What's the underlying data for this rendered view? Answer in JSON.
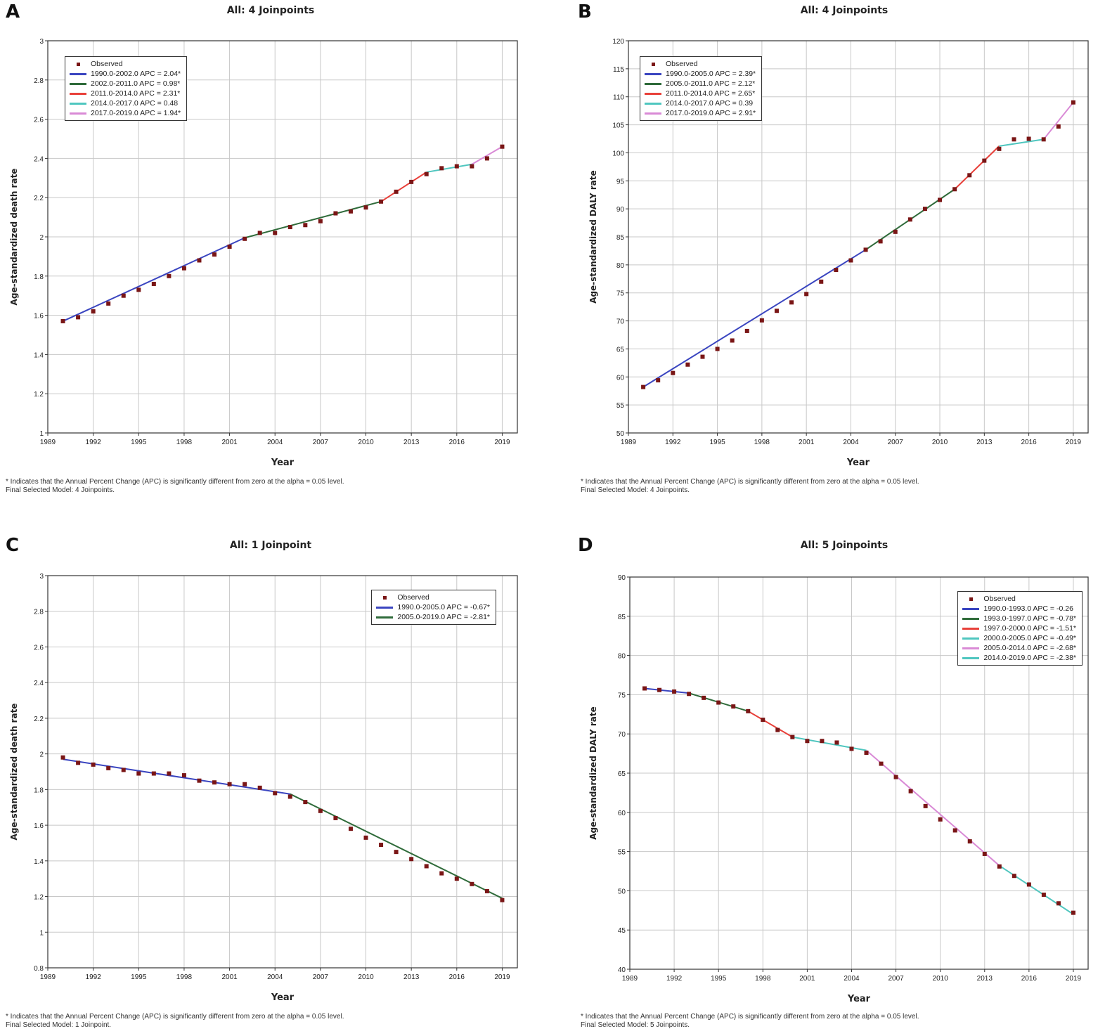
{
  "footnote": {
    "line1": "* Indicates that the Annual Percent Change (APC) is significantly different from zero at the alpha = 0.05 level."
  },
  "chart_data": [
    {
      "panel": "A",
      "type": "line",
      "title": "All: 4 Joinpoints",
      "xlabel": "Year",
      "ylabel": "Age-standardized death rate",
      "xlim": [
        1989,
        2020
      ],
      "xticks": [
        1989,
        1992,
        1995,
        1998,
        2001,
        2004,
        2007,
        2010,
        2013,
        2016,
        2019
      ],
      "ylim": [
        1,
        3
      ],
      "yticks": [
        1,
        1.2,
        1.4,
        1.6,
        1.8,
        2,
        2.2,
        2.4,
        2.6,
        2.8,
        3
      ],
      "legend_position": "top-left",
      "observed_label": "Observed",
      "x": [
        1990,
        1991,
        1992,
        1993,
        1994,
        1995,
        1996,
        1997,
        1998,
        1999,
        2000,
        2001,
        2002,
        2003,
        2004,
        2005,
        2006,
        2007,
        2008,
        2009,
        2010,
        2011,
        2012,
        2013,
        2014,
        2015,
        2016,
        2017,
        2018,
        2019
      ],
      "observed": [
        1.57,
        1.59,
        1.62,
        1.66,
        1.7,
        1.73,
        1.76,
        1.8,
        1.84,
        1.88,
        1.91,
        1.95,
        1.99,
        2.02,
        2.02,
        2.05,
        2.06,
        2.08,
        2.12,
        2.13,
        2.15,
        2.18,
        2.23,
        2.28,
        2.32,
        2.35,
        2.36,
        2.36,
        2.4,
        2.46
      ],
      "segments": [
        {
          "label": "1990.0-2002.0 APC = 2.04*",
          "color": "#3a45c0",
          "x": [
            1990,
            2002
          ],
          "y": [
            1.57,
            1.995
          ]
        },
        {
          "label": "2002.0-2011.0 APC = 0.98*",
          "color": "#2f6b3a",
          "x": [
            2002,
            2011
          ],
          "y": [
            1.995,
            2.18
          ]
        },
        {
          "label": "2011.0-2014.0 APC = 2.31*",
          "color": "#e8403a",
          "x": [
            2011,
            2014
          ],
          "y": [
            2.18,
            2.33
          ]
        },
        {
          "label": "2014.0-2017.0 APC = 0.48",
          "color": "#4fc6bf",
          "x": [
            2014,
            2017
          ],
          "y": [
            2.33,
            2.37
          ]
        },
        {
          "label": "2017.0-2019.0 APC = 1.94*",
          "color": "#d98ad6",
          "x": [
            2017,
            2019
          ],
          "y": [
            2.37,
            2.46
          ]
        }
      ],
      "footnote2": "Final Selected Model: 4 Joinpoints."
    },
    {
      "panel": "B",
      "type": "line",
      "title": "All: 4 Joinpoints",
      "xlabel": "Year",
      "ylabel": "Age-standardized DALY rate",
      "xlim": [
        1989,
        2020
      ],
      "xticks": [
        1989,
        1992,
        1995,
        1998,
        2001,
        2004,
        2007,
        2010,
        2013,
        2016,
        2019
      ],
      "ylim": [
        50,
        120
      ],
      "yticks": [
        50,
        55,
        60,
        65,
        70,
        75,
        80,
        85,
        90,
        95,
        100,
        105,
        110,
        115,
        120
      ],
      "legend_position": "top-left",
      "observed_label": "Observed",
      "x": [
        1990,
        1991,
        1992,
        1993,
        1994,
        1995,
        1996,
        1997,
        1998,
        1999,
        2000,
        2001,
        2002,
        2003,
        2004,
        2005,
        2006,
        2007,
        2008,
        2009,
        2010,
        2011,
        2012,
        2013,
        2014,
        2015,
        2016,
        2017,
        2018,
        2019
      ],
      "observed": [
        58.2,
        59.4,
        60.7,
        62.2,
        63.6,
        65.0,
        66.5,
        68.2,
        70.1,
        71.8,
        73.3,
        74.8,
        77.0,
        79.1,
        80.8,
        82.7,
        84.2,
        85.9,
        88.1,
        90.0,
        91.6,
        93.5,
        96.0,
        98.6,
        100.7,
        102.4,
        102.5,
        102.4,
        104.7,
        109.0
      ],
      "segments": [
        {
          "label": "1990.0-2005.0 APC = 2.39*",
          "color": "#3a45c0",
          "x": [
            1990,
            2005
          ],
          "y": [
            58.2,
            82.7
          ]
        },
        {
          "label": "2005.0-2011.0 APC = 2.12*",
          "color": "#2f6b3a",
          "x": [
            2005,
            2011
          ],
          "y": [
            82.7,
            93.5
          ]
        },
        {
          "label": "2011.0-2014.0 APC = 2.65*",
          "color": "#e8403a",
          "x": [
            2011,
            2014
          ],
          "y": [
            93.5,
            101.2
          ]
        },
        {
          "label": "2014.0-2017.0 APC = 0.39",
          "color": "#4fc6bf",
          "x": [
            2014,
            2017
          ],
          "y": [
            101.2,
            102.4
          ]
        },
        {
          "label": "2017.0-2019.0 APC = 2.91*",
          "color": "#d98ad6",
          "x": [
            2017,
            2019
          ],
          "y": [
            102.4,
            109.0
          ]
        }
      ],
      "footnote2": "Final Selected Model: 4 Joinpoints."
    },
    {
      "panel": "C",
      "type": "line",
      "title": "All: 1 Joinpoint",
      "xlabel": "Year",
      "ylabel": "Age-standardized death rate",
      "xlim": [
        1989,
        2020
      ],
      "xticks": [
        1989,
        1992,
        1995,
        1998,
        2001,
        2004,
        2007,
        2010,
        2013,
        2016,
        2019
      ],
      "ylim": [
        0.8,
        3
      ],
      "yticks": [
        0.8,
        1,
        1.2,
        1.4,
        1.6,
        1.8,
        2,
        2.2,
        2.4,
        2.6,
        2.8,
        3
      ],
      "legend_position": "top-right",
      "observed_label": "Observed",
      "x": [
        1990,
        1991,
        1992,
        1993,
        1994,
        1995,
        1996,
        1997,
        1998,
        1999,
        2000,
        2001,
        2002,
        2003,
        2004,
        2005,
        2006,
        2007,
        2008,
        2009,
        2010,
        2011,
        2012,
        2013,
        2014,
        2015,
        2016,
        2017,
        2018,
        2019
      ],
      "observed": [
        1.98,
        1.95,
        1.94,
        1.92,
        1.91,
        1.89,
        1.89,
        1.89,
        1.88,
        1.85,
        1.84,
        1.83,
        1.83,
        1.81,
        1.78,
        1.76,
        1.73,
        1.68,
        1.64,
        1.58,
        1.53,
        1.49,
        1.45,
        1.41,
        1.37,
        1.33,
        1.3,
        1.27,
        1.23,
        1.18
      ],
      "segments": [
        {
          "label": "1990.0-2005.0 APC = -0.67*",
          "color": "#3a45c0",
          "x": [
            1990,
            2005
          ],
          "y": [
            1.97,
            1.775
          ]
        },
        {
          "label": "2005.0-2019.0 APC = -2.81*",
          "color": "#2f6b3a",
          "x": [
            2005,
            2019
          ],
          "y": [
            1.775,
            1.19
          ]
        }
      ],
      "footnote2": "Final Selected Model: 1 Joinpoint."
    },
    {
      "panel": "D",
      "type": "line",
      "title": "All: 5 Joinpoints",
      "xlabel": "Year",
      "ylabel": "Age-standardized DALY rate",
      "xlim": [
        1989,
        2020
      ],
      "xticks": [
        1989,
        1992,
        1995,
        1998,
        2001,
        2004,
        2007,
        2010,
        2013,
        2016,
        2019
      ],
      "ylim": [
        40,
        90
      ],
      "yticks": [
        40,
        45,
        50,
        55,
        60,
        65,
        70,
        75,
        80,
        85,
        90
      ],
      "legend_position": "top-right",
      "observed_label": "Observed",
      "x": [
        1990,
        1991,
        1992,
        1993,
        1994,
        1995,
        1996,
        1997,
        1998,
        1999,
        2000,
        2001,
        2002,
        2003,
        2004,
        2005,
        2006,
        2007,
        2008,
        2009,
        2010,
        2011,
        2012,
        2013,
        2014,
        2015,
        2016,
        2017,
        2018,
        2019
      ],
      "observed": [
        75.8,
        75.6,
        75.4,
        75.1,
        74.6,
        74.0,
        73.5,
        72.9,
        71.8,
        70.5,
        69.6,
        69.1,
        69.1,
        68.9,
        68.1,
        67.6,
        66.2,
        64.5,
        62.7,
        60.8,
        59.1,
        57.7,
        56.3,
        54.7,
        53.1,
        51.9,
        50.8,
        49.5,
        48.4,
        47.2
      ],
      "segments": [
        {
          "label": "1990.0-1993.0 APC = -0.26",
          "color": "#3a45c0",
          "x": [
            1990,
            1993
          ],
          "y": [
            75.8,
            75.2
          ]
        },
        {
          "label": "1993.0-1997.0 APC = -0.78*",
          "color": "#2f6b3a",
          "x": [
            1993,
            1997
          ],
          "y": [
            75.2,
            72.9
          ]
        },
        {
          "label": "1997.0-2000.0 APC = -1.51*",
          "color": "#e8403a",
          "x": [
            1997,
            2000
          ],
          "y": [
            72.9,
            69.6
          ]
        },
        {
          "label": "2000.0-2005.0 APC = -0.49*",
          "color": "#4fc6bf",
          "x": [
            2000,
            2005
          ],
          "y": [
            69.6,
            67.9
          ]
        },
        {
          "label": "2005.0-2014.0 APC = -2.68*",
          "color": "#d98ad6",
          "x": [
            2005,
            2014
          ],
          "y": [
            67.9,
            53.2
          ]
        },
        {
          "label": "2014.0-2019.0 APC = -2.38*",
          "color": "#4fc6bf",
          "x": [
            2014,
            2019
          ],
          "y": [
            53.2,
            47.0
          ]
        }
      ],
      "footnote2": "Final Selected Model: 5 Joinpoints."
    }
  ]
}
